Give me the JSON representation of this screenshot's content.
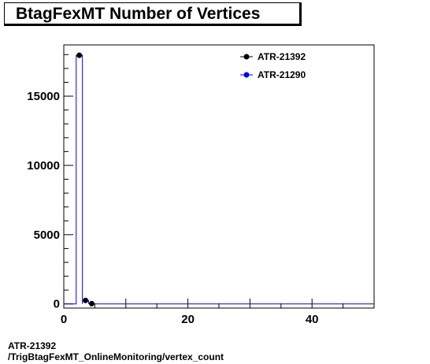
{
  "title": "BtagFexMT Number of Vertices",
  "footer": {
    "line1": "ATR-21392",
    "line2": "/TrigBtagFexMT_OnlineMonitoring/vertex_count"
  },
  "chart_data": {
    "type": "line",
    "title": "BtagFexMT Number of Vertices",
    "xlabel": "",
    "ylabel": "",
    "xlim": [
      0,
      50
    ],
    "ylim": [
      -300,
      18700
    ],
    "x_ticks": [
      0,
      20,
      40
    ],
    "y_ticks": [
      0,
      5000,
      10000,
      15000
    ],
    "x_tick_labels": [
      "0",
      "20",
      "40"
    ],
    "y_tick_labels": [
      "0",
      "5000",
      "10000",
      "15000"
    ],
    "legend_position": "top-right",
    "series": [
      {
        "name": "ATR-21392",
        "color": "#000000",
        "style": "points",
        "x": [
          2.5,
          3.5,
          4.5
        ],
        "values": [
          17950,
          250,
          20
        ]
      },
      {
        "name": "ATR-21290",
        "color": "#0000ff",
        "style": "histogram",
        "x": [
          2.5,
          3.5,
          4.5
        ],
        "values": [
          17950,
          250,
          20
        ]
      }
    ]
  }
}
